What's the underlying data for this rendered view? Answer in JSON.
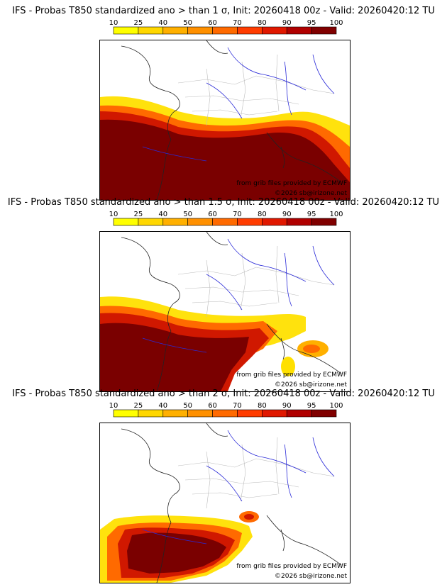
{
  "panels": [
    {
      "title": "IFS - Probas T850  standardized ano > than 1 σ, Init: 20260418 00z - Valid: 20260420:12 TU"
    },
    {
      "title": "IFS - Probas T850  standardized ano > than 1.5 σ, Init: 20260418 00z - Valid: 20260420:12 TU"
    },
    {
      "title": "IFS - Probas T850  standardized ano > than 2 σ, Init: 20260418 00z - Valid: 20260420:12 TU"
    }
  ],
  "colorbar": {
    "ticks": [
      "10",
      "25",
      "40",
      "50",
      "60",
      "70",
      "80",
      "90",
      "95",
      "100"
    ],
    "colors": [
      "#ffff00",
      "#ffd700",
      "#ffb000",
      "#ff9000",
      "#ff6a00",
      "#ff3c00",
      "#e01800",
      "#b00000",
      "#800000"
    ]
  },
  "map_text": {
    "source": "from grib files provided by ECMWF",
    "copyright": "©2026 sb@irizone.net"
  },
  "colors": {
    "land_border": "#222222",
    "region_border": "#bbbbbb",
    "river": "#2a2ad8",
    "prob_dark": "#7a0000",
    "prob_mid": "#d01800",
    "prob_low": "#ffe000"
  }
}
